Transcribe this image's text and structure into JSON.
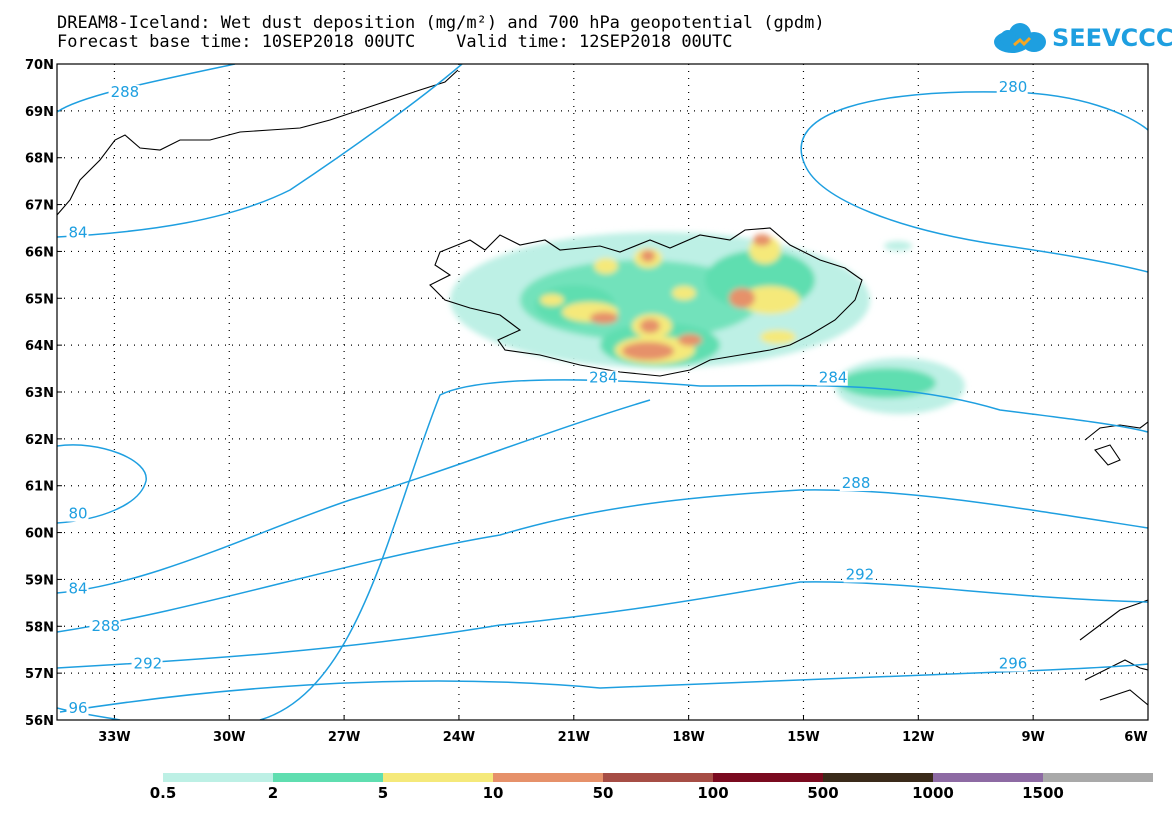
{
  "header": {
    "title_line1": "DREAM8-Iceland: Wet dust deposition (mg/m²) and 700 hPa geopotential (gpdm)",
    "title_line2": "Forecast base time: 10SEP2018 00UTC    Valid time: 12SEP2018 00UTC"
  },
  "logo": {
    "text": "SEEVCCC",
    "icon": "cloud-icon",
    "color": "#1e9fe0"
  },
  "map": {
    "lat_labels": [
      "70N",
      "69N",
      "68N",
      "67N",
      "66N",
      "65N",
      "64N",
      "63N",
      "62N",
      "61N",
      "60N",
      "59N",
      "58N",
      "57N",
      "56N"
    ],
    "lon_labels": [
      "33W",
      "30W",
      "27W",
      "24W",
      "21W",
      "18W",
      "15W",
      "12W",
      "9W",
      "6W"
    ],
    "lat_range": [
      56,
      70
    ],
    "lon_range": [
      -34.5,
      -6
    ],
    "contour_color": "#1e9fe0",
    "contour_labels": [
      {
        "text": "288",
        "lon": -33.1,
        "lat": 69.3
      },
      {
        "text": "280",
        "lon": -9.9,
        "lat": 69.4
      },
      {
        "text": "84",
        "lon": -34.2,
        "lat": 66.3
      },
      {
        "text": "284",
        "lon": -20.6,
        "lat": 63.2
      },
      {
        "text": "284",
        "lon": -14.6,
        "lat": 63.2
      },
      {
        "text": "80",
        "lon": -34.2,
        "lat": 60.3
      },
      {
        "text": "288",
        "lon": -14.0,
        "lat": 60.95
      },
      {
        "text": "84",
        "lon": -34.2,
        "lat": 58.7
      },
      {
        "text": "288",
        "lon": -33.6,
        "lat": 57.9
      },
      {
        "text": "292",
        "lon": -13.9,
        "lat": 59.0
      },
      {
        "text": "292",
        "lon": -32.5,
        "lat": 57.1
      },
      {
        "text": "296",
        "lon": -9.9,
        "lat": 57.1
      },
      {
        "text": "96",
        "lon": -34.2,
        "lat": 56.15
      }
    ]
  },
  "legend": {
    "colors": [
      "#bdf0e5",
      "#5fdeb0",
      "#f5e97a",
      "#e6916a",
      "#a64d45",
      "#7a0a1f",
      "#3a2a1a",
      "#8d6aa3",
      "#a9a9a9"
    ],
    "labels": [
      "0.5",
      "2",
      "5",
      "10",
      "50",
      "100",
      "500",
      "1000",
      "1500"
    ]
  }
}
